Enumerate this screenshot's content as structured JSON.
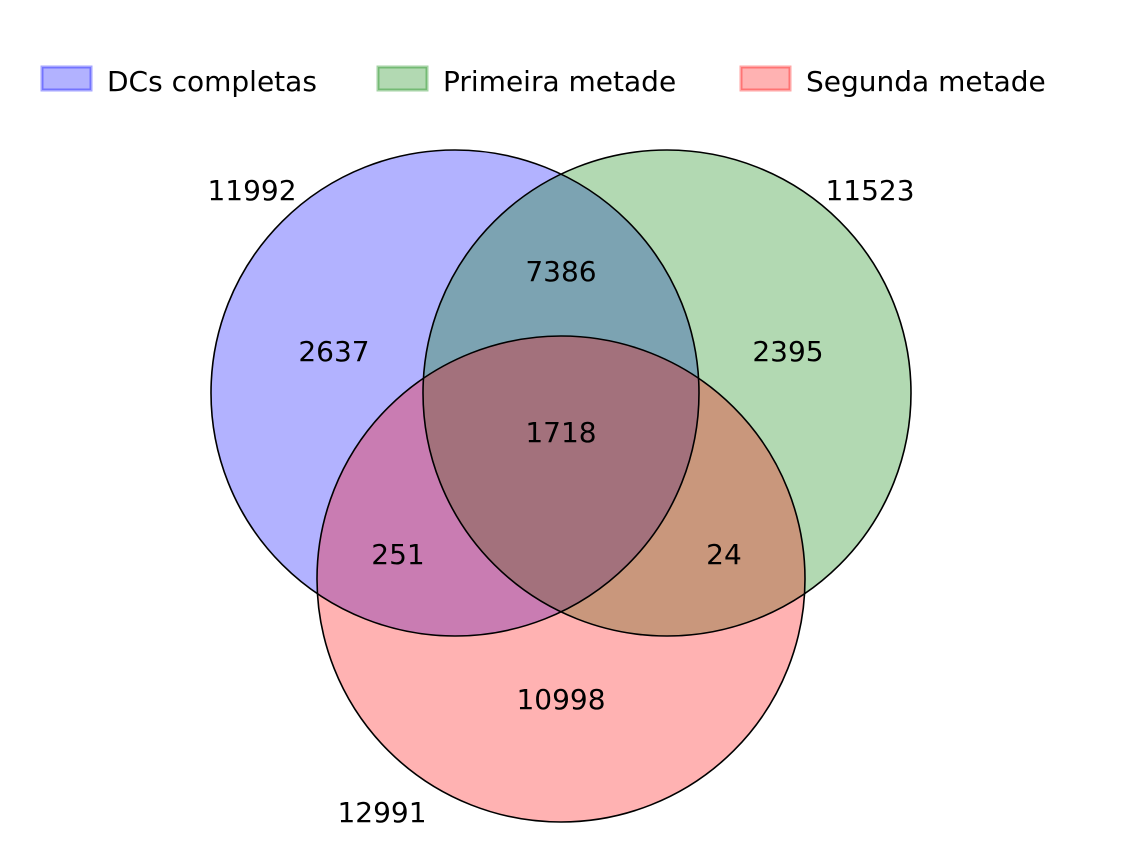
{
  "legend": {
    "items": [
      {
        "label": "DCs completas",
        "color": "#8080ff"
      },
      {
        "label": "Primeira metade",
        "color": "#66b266"
      },
      {
        "label": "Segunda metade",
        "color": "#ff8080"
      }
    ]
  },
  "sets": {
    "a": {
      "label": "DCs completas",
      "total": "11992",
      "color": "#0000ff"
    },
    "b": {
      "label": "Primeira metade",
      "total": "11523",
      "color": "#008000"
    },
    "c": {
      "label": "Segunda metade",
      "total": "12991",
      "color": "#ff0000"
    }
  },
  "regions": {
    "a_only": "2637",
    "b_only": "2395",
    "c_only": "10998",
    "ab_only": "7386",
    "ac_only": "251",
    "bc_only": "24",
    "abc": "1718"
  },
  "style": {
    "fill_opacity": 0.3
  }
}
